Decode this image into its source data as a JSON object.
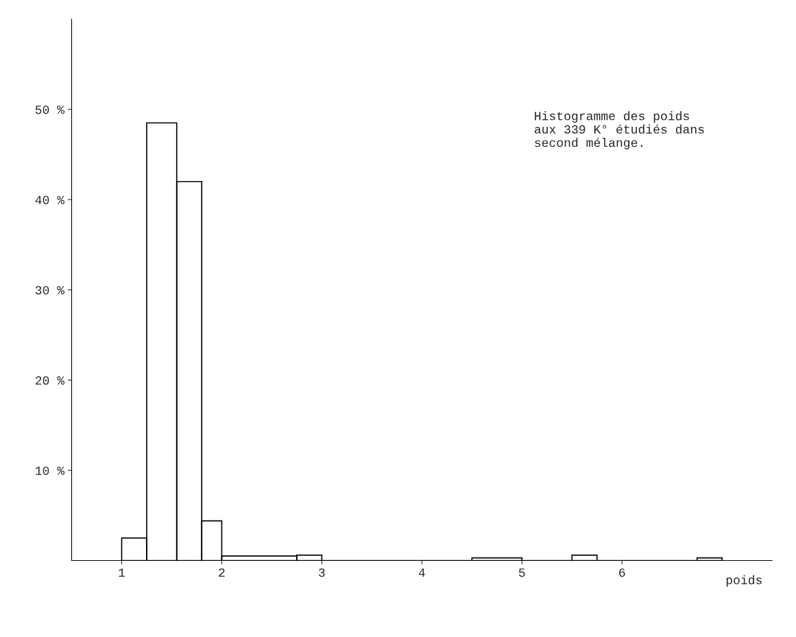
{
  "chart_data": {
    "type": "histogram",
    "bins": [
      1,
      1.25,
      1.55,
      1.8,
      2,
      2.75,
      3,
      4.5,
      5,
      5.5,
      5.75,
      6.75,
      7
    ],
    "values": [
      2.5,
      48.5,
      42,
      4.4,
      0.5,
      0.6,
      0,
      0.3,
      0,
      0.6,
      0,
      0.3
    ],
    "color": "#000000",
    "xlabel": "poids",
    "xlim": [
      0.5,
      7.5
    ],
    "xticks": [
      1,
      2,
      3,
      4,
      5,
      6
    ],
    "ylim": [
      0,
      60
    ],
    "yticks": [
      {
        "value": 10,
        "label": "10 %"
      },
      {
        "value": 20,
        "label": "20 %"
      },
      {
        "value": 30,
        "label": "30 %"
      },
      {
        "value": 40,
        "label": "40 %"
      },
      {
        "value": 50,
        "label": "50 %"
      }
    ],
    "grid": false,
    "annotations": [
      "Histogramme des poids\naux 339 K° étudiés dans\nsecond mélange."
    ]
  }
}
